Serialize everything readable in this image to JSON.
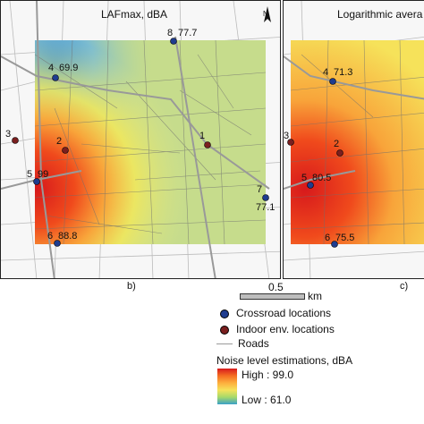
{
  "panels": [
    {
      "id": "b",
      "title": "LAFmax, dBA",
      "letter": "b)",
      "north": "N",
      "points": [
        {
          "kind": "crossroad",
          "id": "8",
          "value": "77.7"
        },
        {
          "kind": "crossroad",
          "id": "4",
          "value": "69.9"
        },
        {
          "kind": "indoor",
          "id": "3",
          "value": ""
        },
        {
          "kind": "indoor",
          "id": "2",
          "value": ""
        },
        {
          "kind": "indoor",
          "id": "1",
          "value": ""
        },
        {
          "kind": "crossroad",
          "id": "5",
          "value": "99"
        },
        {
          "kind": "crossroad",
          "id": "7",
          "value": "77.1"
        },
        {
          "kind": "crossroad",
          "id": "6",
          "value": "88.8"
        }
      ]
    },
    {
      "id": "c",
      "title": "Logarithmic avera",
      "letter": "c)",
      "points": [
        {
          "kind": "crossroad",
          "id": "4",
          "value": "71.3"
        },
        {
          "kind": "indoor",
          "id": "3",
          "value": ""
        },
        {
          "kind": "indoor",
          "id": "2",
          "value": ""
        },
        {
          "kind": "crossroad",
          "id": "5",
          "value": "80.5"
        },
        {
          "kind": "crossroad",
          "id": "6",
          "value": "75.5"
        }
      ]
    }
  ],
  "scale": {
    "value": "0.5",
    "unit": "km"
  },
  "legend": {
    "crossroad_label": "Crossroad locations",
    "indoor_label": "Indoor env. locations",
    "roads_label": "Roads",
    "ramp_title": "Noise level estimations, dBA",
    "high_label": "High : 99.0",
    "low_label": "Low : 61.0"
  },
  "colors": {
    "crossroad": "#1f3c8f",
    "indoor": "#7a1f1f",
    "road": "#9a9a9a"
  }
}
